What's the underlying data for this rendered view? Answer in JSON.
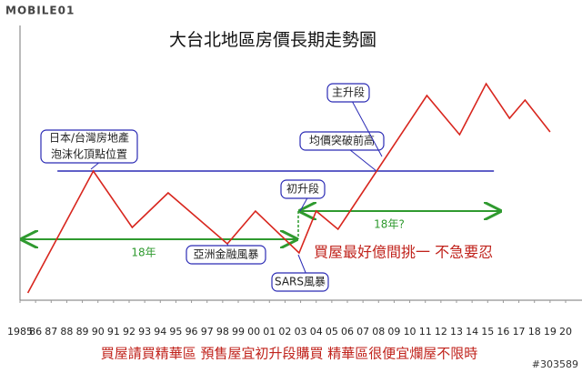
{
  "chart_data": {
    "type": "line",
    "title": "大台北地區房價長期走勢圖",
    "x": [
      1985.5,
      1989.7,
      1992.2,
      1994.5,
      1998.3,
      2000.1,
      2002.9,
      2004.0,
      2005.4,
      2011.1,
      2013.2,
      2014.9,
      2016.4,
      2017.4,
      2019.0
    ],
    "values": [
      8,
      142,
      80,
      118,
      62,
      98,
      52,
      98,
      78,
      225,
      182,
      238,
      200,
      220,
      185
    ],
    "color": "#d8261e",
    "xlim": [
      1985,
      2020
    ],
    "ylim": [
      0,
      300
    ],
    "xticks": [
      1985,
      {
        "value": 1986,
        "label": "86"
      },
      {
        "value": 1987,
        "label": "87"
      },
      {
        "value": 1988,
        "label": "88"
      },
      {
        "value": 1989,
        "label": "89"
      },
      {
        "value": 1990,
        "label": "90"
      },
      {
        "value": 1991,
        "label": "91"
      },
      {
        "value": 1992,
        "label": "92"
      },
      {
        "value": 1993,
        "label": "93"
      },
      {
        "value": 1994,
        "label": "94"
      },
      {
        "value": 1995,
        "label": "95"
      },
      {
        "value": 1996,
        "label": "96"
      },
      {
        "value": 1997,
        "label": "97"
      },
      {
        "value": 1998,
        "label": "98"
      },
      {
        "value": 1999,
        "label": "99"
      },
      {
        "value": 2000,
        "label": "00"
      },
      {
        "value": 2001,
        "label": "01"
      },
      {
        "value": 2002,
        "label": "02"
      },
      {
        "value": 2003,
        "label": "03"
      },
      {
        "value": 2004,
        "label": "04"
      },
      {
        "value": 2005,
        "label": "05"
      },
      {
        "value": 2006,
        "label": "06"
      },
      {
        "value": 2007,
        "label": "07"
      },
      {
        "value": 2008,
        "label": "08"
      },
      {
        "value": 2009,
        "label": "09"
      },
      {
        "value": 2010,
        "label": "10"
      },
      {
        "value": 2011,
        "label": "11"
      },
      {
        "value": 2012,
        "label": "12"
      },
      {
        "value": 2013,
        "label": "13"
      },
      {
        "value": 2014,
        "label": "14"
      },
      {
        "value": 2015,
        "label": "15"
      },
      {
        "value": 2016,
        "label": "16"
      },
      {
        "value": 2017,
        "label": "17"
      },
      {
        "value": 2018,
        "label": "18"
      },
      {
        "value": 2019,
        "label": "19"
      },
      {
        "value": 2020,
        "label": "20"
      }
    ],
    "reference_line": {
      "y": 142,
      "x": [
        1987.4,
        2015.4
      ],
      "color": "#2b2bb5"
    },
    "annotations": [
      [
        "日本/台灣房地產",
        "泡沫化頂點位置"
      ],
      [
        "亞洲金融風暴"
      ],
      [
        "SARS風暴"
      ],
      [
        "初升段"
      ],
      [
        "均價突破前高"
      ],
      [
        "主升段"
      ]
    ],
    "period_labels": [
      "18年",
      "18年?"
    ],
    "highlight_text": "買屋最好億間挑一  不急要忍",
    "footer_text": "買屋請買精華區  預售屋宜初升段購買  精華區很便宜爛屋不限時",
    "logo": "MOBILE01",
    "post_id": "#303589"
  }
}
